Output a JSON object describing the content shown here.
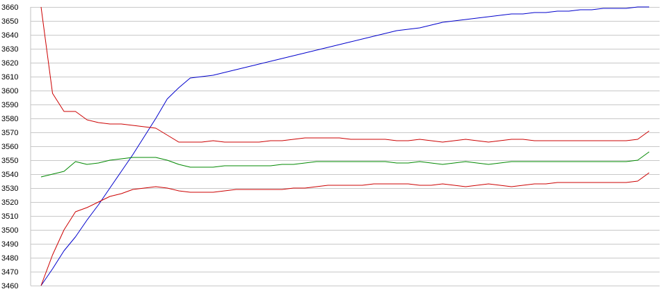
{
  "chart_data": {
    "type": "line",
    "title": "",
    "xlabel": "",
    "ylabel": "",
    "ylim": [
      3460,
      3660
    ],
    "yticks": [
      3460,
      3470,
      3480,
      3490,
      3500,
      3510,
      3520,
      3530,
      3540,
      3550,
      3560,
      3570,
      3580,
      3590,
      3600,
      3610,
      3620,
      3630,
      3640,
      3650,
      3660
    ],
    "grid": "horizontal",
    "legend": "none",
    "x": [
      1,
      2,
      3,
      4,
      5,
      6,
      7,
      8,
      9,
      10,
      11,
      12,
      13,
      14,
      15,
      16,
      17,
      18,
      19,
      20,
      21,
      22,
      23,
      24,
      25,
      26,
      27,
      28,
      29,
      30,
      31,
      32,
      33,
      34,
      35,
      36,
      37,
      38,
      39,
      40,
      41,
      42,
      43,
      44,
      45,
      46,
      47,
      48,
      49,
      50,
      51,
      52,
      53,
      54
    ],
    "series": [
      {
        "color": "#0000cc",
        "values": [
          3460,
          3472,
          3485,
          3495,
          3507,
          3518,
          3530,
          3542,
          3554,
          3567,
          3580,
          3594,
          3602,
          3609,
          3610,
          3611,
          3613,
          3615,
          3617,
          3619,
          3621,
          3623,
          3625,
          3627,
          3629,
          3631,
          3633,
          3635,
          3637,
          3639,
          3641,
          3643,
          3644,
          3645,
          3647,
          3649,
          3650,
          3651,
          3652,
          3653,
          3654,
          3655,
          3655,
          3656,
          3656,
          3657,
          3657,
          3658,
          3658,
          3659,
          3659,
          3659,
          3660,
          3660
        ]
      },
      {
        "color": "#cc0000",
        "values": [
          3660,
          3598,
          3585,
          3585,
          3579,
          3577,
          3576,
          3576,
          3575,
          3574,
          3573,
          3568,
          3563,
          3563,
          3563,
          3564,
          3563,
          3563,
          3563,
          3563,
          3564,
          3564,
          3565,
          3566,
          3566,
          3566,
          3566,
          3565,
          3565,
          3565,
          3565,
          3564,
          3564,
          3565,
          3564,
          3563,
          3564,
          3565,
          3564,
          3563,
          3564,
          3565,
          3565,
          3564,
          3564,
          3564,
          3564,
          3564,
          3564,
          3564,
          3564,
          3564,
          3565,
          3571
        ]
      },
      {
        "color": "#008800",
        "values": [
          3538,
          3540,
          3542,
          3549,
          3547,
          3548,
          3550,
          3551,
          3552,
          3552,
          3552,
          3550,
          3547,
          3545,
          3545,
          3545,
          3546,
          3546,
          3546,
          3546,
          3546,
          3547,
          3547,
          3548,
          3549,
          3549,
          3549,
          3549,
          3549,
          3549,
          3549,
          3548,
          3548,
          3549,
          3548,
          3547,
          3548,
          3549,
          3548,
          3547,
          3548,
          3549,
          3549,
          3549,
          3549,
          3549,
          3549,
          3549,
          3549,
          3549,
          3549,
          3549,
          3550,
          3556
        ]
      },
      {
        "color": "#cc0000",
        "values": [
          3460,
          3482,
          3500,
          3513,
          3516,
          3520,
          3524,
          3526,
          3529,
          3530,
          3531,
          3530,
          3528,
          3527,
          3527,
          3527,
          3528,
          3529,
          3529,
          3529,
          3529,
          3529,
          3530,
          3530,
          3531,
          3532,
          3532,
          3532,
          3532,
          3533,
          3533,
          3533,
          3533,
          3532,
          3532,
          3533,
          3532,
          3531,
          3532,
          3533,
          3532,
          3531,
          3532,
          3533,
          3533,
          3534,
          3534,
          3534,
          3534,
          3534,
          3534,
          3534,
          3535,
          3541
        ]
      }
    ]
  }
}
